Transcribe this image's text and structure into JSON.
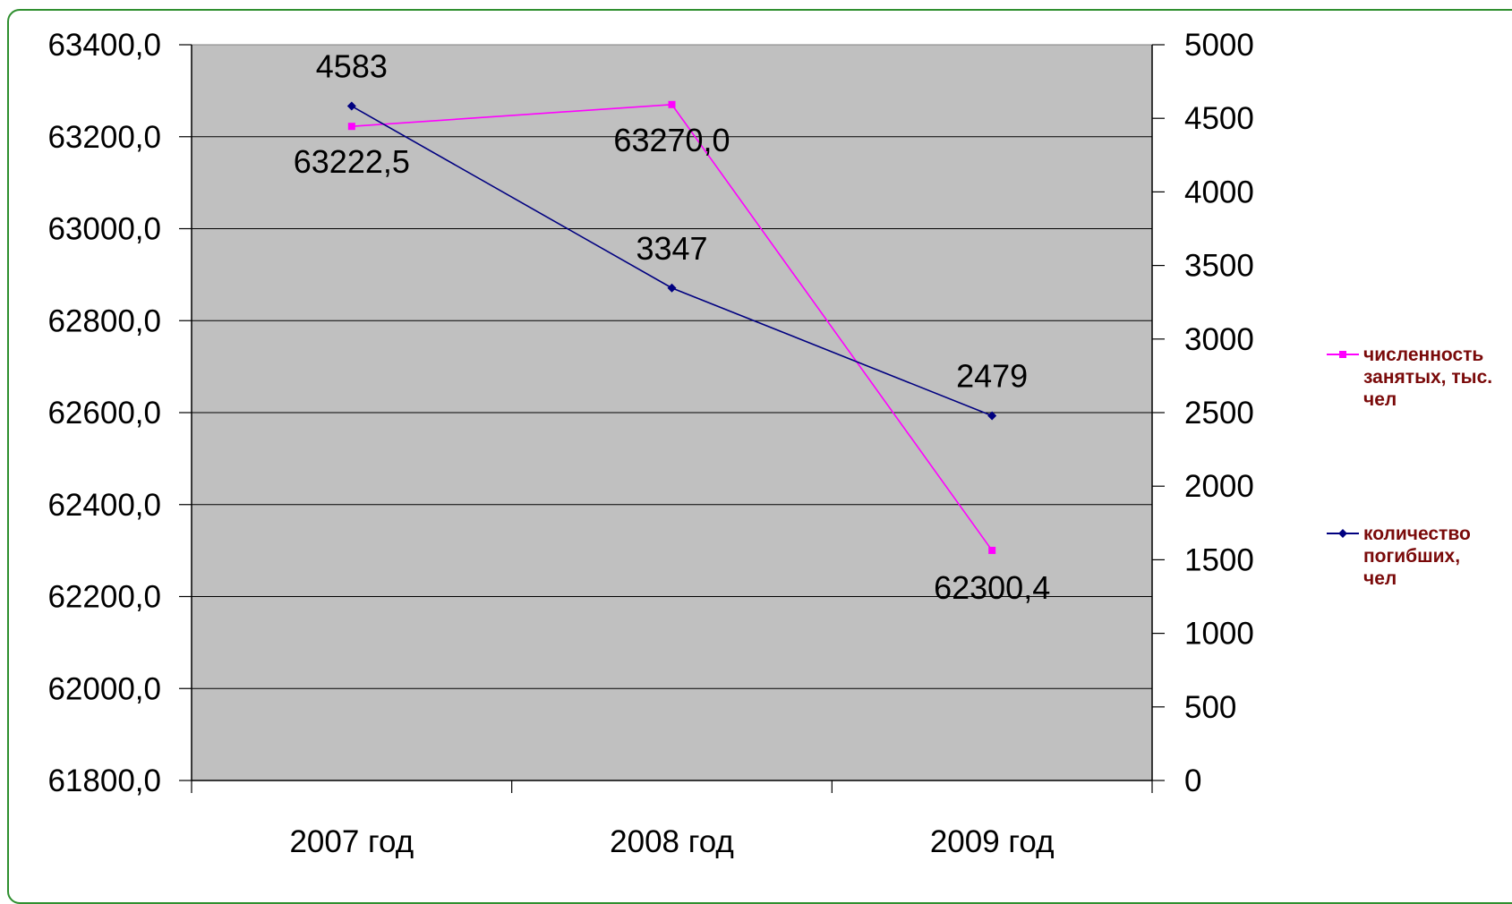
{
  "chart_data": {
    "type": "line",
    "title": "",
    "xlabel": "",
    "ylabel": "",
    "categories": [
      "2007 год",
      "2008 год",
      "2009 год"
    ],
    "y_left": {
      "range": [
        61800,
        63400
      ],
      "ticks": [
        "61800,0",
        "62000,0",
        "62200,0",
        "62400,0",
        "62600,0",
        "62800,0",
        "63000,0",
        "63200,0",
        "63400,0"
      ],
      "tick_values": [
        61800,
        62000,
        62200,
        62400,
        62600,
        62800,
        63000,
        63200,
        63400
      ]
    },
    "y_right": {
      "range": [
        0,
        5000
      ],
      "ticks": [
        "0",
        "500",
        "1000",
        "1500",
        "2000",
        "2500",
        "3000",
        "3500",
        "4000",
        "4500",
        "5000"
      ],
      "tick_values": [
        0,
        500,
        1000,
        1500,
        2000,
        2500,
        3000,
        3500,
        4000,
        4500,
        5000
      ]
    },
    "grid": true,
    "plot_background": "#c0c0c0",
    "legend_position": "right",
    "series": [
      {
        "name_lines": [
          "численность",
          "занятых, тыс.",
          "чел"
        ],
        "axis": "left",
        "color": "#ff00ff",
        "marker": "square",
        "values": [
          63222.5,
          63270.0,
          62300.4
        ],
        "labels": [
          "63222,5",
          "63270,0",
          "62300,4"
        ]
      },
      {
        "name_lines": [
          "количество",
          "погибших,",
          "чел"
        ],
        "axis": "right",
        "color": "#000080",
        "marker": "diamond",
        "values": [
          4583,
          3347,
          2479
        ],
        "labels": [
          "4583",
          "3347",
          "2479"
        ]
      }
    ]
  }
}
